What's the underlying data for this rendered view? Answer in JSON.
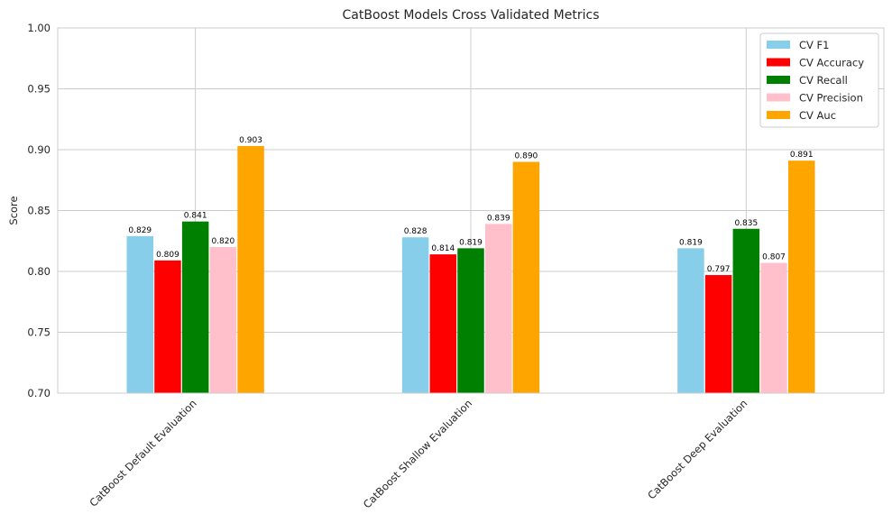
{
  "chart_data": {
    "type": "bar",
    "title": "CatBoost Models Cross Validated Metrics",
    "xlabel": "",
    "ylabel": "Score",
    "ylim": [
      0.7,
      1.0
    ],
    "yticks": [
      "0.70",
      "0.75",
      "0.80",
      "0.85",
      "0.90",
      "0.95",
      "1.00"
    ],
    "grid": true,
    "legend_position": "top-right",
    "categories": [
      "CatBoost Default Evaluation",
      "CatBoost Shallow Evaluation",
      "CatBoost Deep Evaluation"
    ],
    "series": [
      {
        "name": "CV F1",
        "color": "#87ceeb",
        "values": [
          0.829,
          0.828,
          0.819
        ],
        "labels": [
          "0.829",
          "0.828",
          "0.819"
        ]
      },
      {
        "name": "CV Accuracy",
        "color": "#ff0000",
        "values": [
          0.809,
          0.814,
          0.797
        ],
        "labels": [
          "0.809",
          "0.814",
          "0.797"
        ]
      },
      {
        "name": "CV Recall",
        "color": "#008000",
        "values": [
          0.841,
          0.819,
          0.835
        ],
        "labels": [
          "0.841",
          "0.819",
          "0.835"
        ]
      },
      {
        "name": "CV Precision",
        "color": "#ffc0cb",
        "values": [
          0.82,
          0.839,
          0.807
        ],
        "labels": [
          "0.820",
          "0.839",
          "0.807"
        ]
      },
      {
        "name": "CV Auc",
        "color": "#ffa500",
        "values": [
          0.903,
          0.89,
          0.891
        ],
        "labels": [
          "0.903",
          "0.890",
          "0.891"
        ]
      }
    ]
  }
}
